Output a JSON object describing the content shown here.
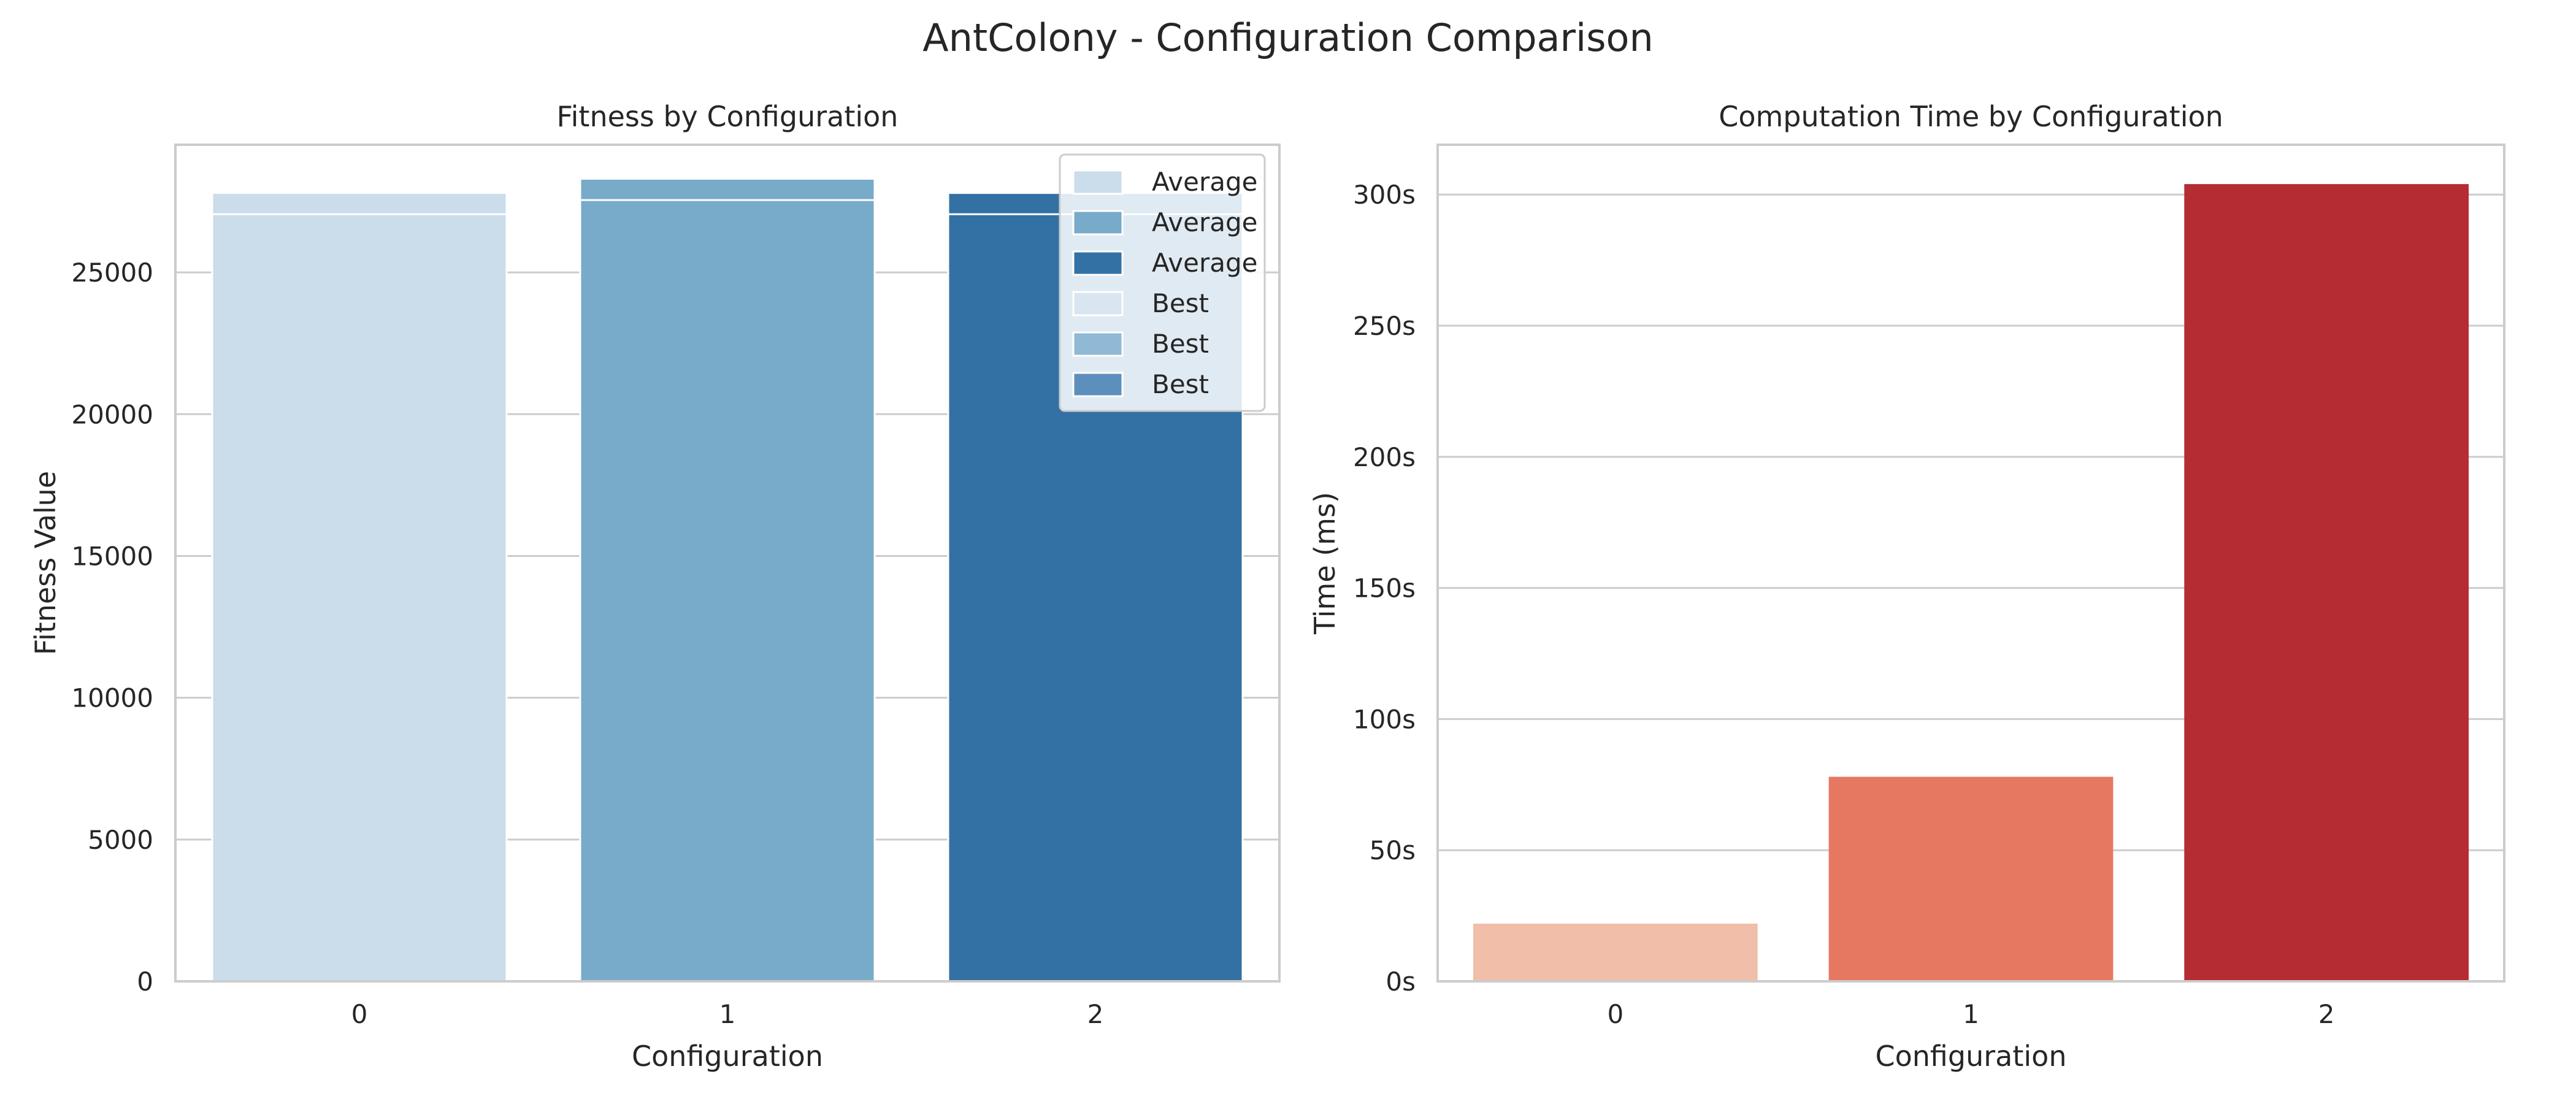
{
  "title": "AntColony - Configuration Comparison",
  "chart_data": [
    {
      "type": "bar",
      "title": "Fitness by Configuration",
      "xlabel": "Configuration",
      "ylabel": "Fitness Value",
      "categories": [
        "0",
        "1",
        "2"
      ],
      "ylim": [
        0,
        29500
      ],
      "yticks": [
        0,
        5000,
        10000,
        15000,
        20000,
        25000
      ],
      "ytick_labels": [
        "0",
        "5000",
        "10000",
        "15000",
        "20000",
        "25000"
      ],
      "grid": true,
      "legend_position": "top-right",
      "series": [
        {
          "name": "Average",
          "values": [
            27800,
            28300,
            27800
          ],
          "colors": [
            "#cbdcea",
            "#78aac9",
            "#3371a5"
          ]
        },
        {
          "name": "Best",
          "values": [
            27050,
            27550,
            27050
          ],
          "colors": [
            "#cbdcea",
            "#78aac9",
            "#3371a5"
          ]
        }
      ],
      "legend": [
        {
          "label": "Average",
          "color": "#cbdcea"
        },
        {
          "label": "Average",
          "color": "#78aac9"
        },
        {
          "label": "Average",
          "color": "#3371a5"
        },
        {
          "label": "Best",
          "color": "#d9e6f1"
        },
        {
          "label": "Best",
          "color": "#8fb9d4"
        },
        {
          "label": "Best",
          "color": "#5d8fbd"
        }
      ]
    },
    {
      "type": "bar",
      "title": "Computation Time by Configuration",
      "xlabel": "Configuration",
      "ylabel": "Time (ms)",
      "categories": [
        "0",
        "1",
        "2"
      ],
      "values": [
        22,
        78,
        304
      ],
      "colors": [
        "#f1bea9",
        "#e67862",
        "#b52c32"
      ],
      "ylim": [
        0,
        319
      ],
      "yticks": [
        0,
        50,
        100,
        150,
        200,
        250,
        300
      ],
      "ytick_labels": [
        "0s",
        "50s",
        "100s",
        "150s",
        "200s",
        "250s",
        "300s"
      ],
      "grid": true
    }
  ]
}
